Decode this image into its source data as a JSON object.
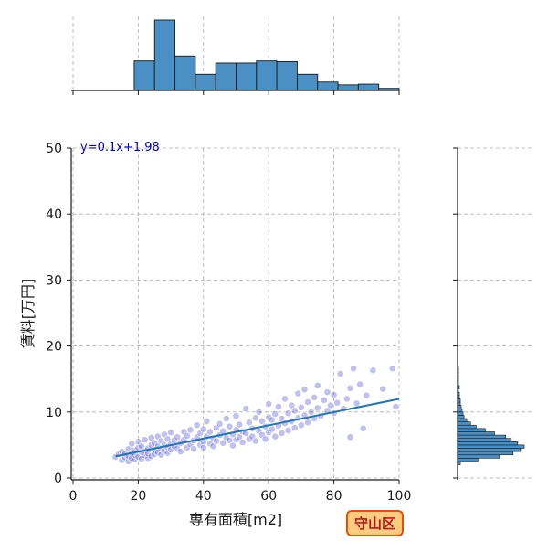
{
  "chart_data": {
    "type": "scatter",
    "title": "",
    "xlabel": "専有面積[m2]",
    "ylabel": "賃料[万円]",
    "xlim": [
      0,
      100
    ],
    "ylim": [
      0,
      50
    ],
    "xticks": [
      0,
      20,
      40,
      60,
      80,
      100
    ],
    "yticks": [
      0,
      10,
      20,
      30,
      40,
      50
    ],
    "grid": true,
    "regression": {
      "label": "y=0.1x+1.98",
      "slope": 0.1,
      "intercept": 1.98,
      "x_range": [
        13,
        100
      ]
    },
    "badge": {
      "text": "守山区",
      "fill": "#ffcc80",
      "border": "#e65100",
      "color": "#b71c1c"
    },
    "colors": {
      "points": "#3f3fd0",
      "line": "#1f77b4",
      "hist": "#4a90c4",
      "hist_edge": "#1a1a1a",
      "grid": "#b0b0b0",
      "label": "#0000cc"
    },
    "marginal_x": {
      "bin_edges": [
        0,
        6.25,
        12.5,
        18.75,
        25,
        31.25,
        37.5,
        43.75,
        50,
        56.25,
        62.5,
        68.75,
        75,
        81.25,
        87.5,
        93.75,
        100
      ],
      "counts": [
        0,
        0,
        0,
        42,
        100,
        49,
        23,
        39,
        39,
        42,
        41,
        23,
        12,
        8,
        9,
        3
      ]
    },
    "marginal_y": {
      "bin_edges": [
        2,
        2.5,
        3,
        3.5,
        4,
        4.5,
        5,
        5.5,
        6,
        6.5,
        7,
        7.5,
        8,
        8.5,
        9,
        9.5,
        10,
        10.5,
        11,
        11.5,
        12,
        12.5,
        13,
        13.5,
        14,
        14.5,
        15,
        15.5,
        16,
        16.5,
        17
      ],
      "counts": [
        3,
        22,
        45,
        60,
        68,
        72,
        65,
        58,
        52,
        40,
        30,
        20,
        14,
        10,
        7,
        6,
        5,
        4,
        3,
        3,
        2,
        2,
        1,
        2,
        1,
        1,
        1,
        1,
        1,
        1
      ]
    },
    "points": [
      [
        13,
        3.2
      ],
      [
        14,
        3.6
      ],
      [
        15,
        2.7
      ],
      [
        15,
        4.0
      ],
      [
        16,
        3.1
      ],
      [
        16,
        3.7
      ],
      [
        17,
        2.5
      ],
      [
        17,
        4.4
      ],
      [
        17,
        3.3
      ],
      [
        18,
        3.0
      ],
      [
        18,
        5.2
      ],
      [
        18,
        3.8
      ],
      [
        19,
        2.8
      ],
      [
        19,
        4.2
      ],
      [
        19,
        3.5
      ],
      [
        20,
        4.6
      ],
      [
        20,
        3.2
      ],
      [
        20,
        5.5
      ],
      [
        21,
        3.9
      ],
      [
        21,
        2.9
      ],
      [
        21,
        4.8
      ],
      [
        22,
        3.4
      ],
      [
        22,
        4.1
      ],
      [
        22,
        5.8
      ],
      [
        23,
        3.0
      ],
      [
        23,
        4.5
      ],
      [
        23,
        3.7
      ],
      [
        24,
        5.0
      ],
      [
        24,
        3.3
      ],
      [
        24,
        6.1
      ],
      [
        25,
        4.2
      ],
      [
        25,
        3.6
      ],
      [
        25,
        5.3
      ],
      [
        26,
        4.8
      ],
      [
        26,
        3.9
      ],
      [
        26,
        6.3
      ],
      [
        27,
        4.4
      ],
      [
        27,
        5.6
      ],
      [
        27,
        3.5
      ],
      [
        28,
        5.0
      ],
      [
        28,
        4.1
      ],
      [
        28,
        6.6
      ],
      [
        29,
        4.7
      ],
      [
        29,
        5.9
      ],
      [
        29,
        3.8
      ],
      [
        30,
        5.2
      ],
      [
        30,
        4.3
      ],
      [
        30,
        6.9
      ],
      [
        31,
        4.9
      ],
      [
        31,
        5.7
      ],
      [
        32,
        4.5
      ],
      [
        32,
        6.2
      ],
      [
        33,
        5.3
      ],
      [
        33,
        4.0
      ],
      [
        34,
        5.8
      ],
      [
        34,
        7.0
      ],
      [
        35,
        4.6
      ],
      [
        35,
        6.4
      ],
      [
        36,
        5.1
      ],
      [
        36,
        7.3
      ],
      [
        37,
        5.7
      ],
      [
        37,
        4.4
      ],
      [
        38,
        6.2
      ],
      [
        38,
        8.0
      ],
      [
        39,
        5.0
      ],
      [
        39,
        6.8
      ],
      [
        40,
        5.5
      ],
      [
        40,
        7.4
      ],
      [
        40,
        4.6
      ],
      [
        41,
        6.3
      ],
      [
        41,
        8.6
      ],
      [
        42,
        5.2
      ],
      [
        42,
        7.0
      ],
      [
        43,
        6.0
      ],
      [
        43,
        4.8
      ],
      [
        44,
        7.6
      ],
      [
        44,
        5.6
      ],
      [
        45,
        6.5
      ],
      [
        45,
        8.2
      ],
      [
        46,
        5.3
      ],
      [
        46,
        7.1
      ],
      [
        47,
        6.1
      ],
      [
        47,
        9.0
      ],
      [
        48,
        5.7
      ],
      [
        48,
        7.8
      ],
      [
        49,
        6.6
      ],
      [
        49,
        4.9
      ],
      [
        50,
        7.3
      ],
      [
        50,
        5.8
      ],
      [
        50,
        9.4
      ],
      [
        51,
        6.2
      ],
      [
        51,
        8.1
      ],
      [
        52,
        5.4
      ],
      [
        52,
        7.0
      ],
      [
        53,
        6.8
      ],
      [
        53,
        10.5
      ],
      [
        54,
        5.9
      ],
      [
        54,
        8.4
      ],
      [
        55,
        7.5
      ],
      [
        55,
        6.3
      ],
      [
        56,
        9.1
      ],
      [
        56,
        5.6
      ],
      [
        57,
        7.1
      ],
      [
        57,
        10.0
      ],
      [
        58,
        6.5
      ],
      [
        58,
        8.6
      ],
      [
        59,
        7.8
      ],
      [
        59,
        5.9
      ],
      [
        60,
        9.2
      ],
      [
        60,
        6.9
      ],
      [
        60,
        11.2
      ],
      [
        61,
        7.4
      ],
      [
        61,
        8.8
      ],
      [
        62,
        6.3
      ],
      [
        62,
        9.7
      ],
      [
        63,
        7.9
      ],
      [
        63,
        10.8
      ],
      [
        64,
        6.8
      ],
      [
        64,
        9.0
      ],
      [
        65,
        8.3
      ],
      [
        65,
        12.0
      ],
      [
        66,
        7.2
      ],
      [
        66,
        9.8
      ],
      [
        67,
        8.6
      ],
      [
        67,
        11.0
      ],
      [
        68,
        7.6
      ],
      [
        68,
        10.2
      ],
      [
        69,
        9.1
      ],
      [
        69,
        12.8
      ],
      [
        70,
        8.0
      ],
      [
        70,
        10.7
      ],
      [
        71,
        9.5
      ],
      [
        71,
        13.4
      ],
      [
        72,
        8.4
      ],
      [
        72,
        11.5
      ],
      [
        73,
        10.0
      ],
      [
        74,
        9.0
      ],
      [
        74,
        12.2
      ],
      [
        75,
        10.6
      ],
      [
        75,
        14.0
      ],
      [
        76,
        9.4
      ],
      [
        77,
        11.8
      ],
      [
        78,
        10.2
      ],
      [
        78,
        13.0
      ],
      [
        79,
        11.0
      ],
      [
        80,
        9.8
      ],
      [
        80,
        12.6
      ],
      [
        81,
        11.4
      ],
      [
        82,
        15.8
      ],
      [
        83,
        10.5
      ],
      [
        84,
        12.0
      ],
      [
        85,
        6.2
      ],
      [
        85,
        13.6
      ],
      [
        86,
        16.6
      ],
      [
        87,
        11.3
      ],
      [
        88,
        14.2
      ],
      [
        89,
        7.5
      ],
      [
        90,
        12.5
      ],
      [
        92,
        16.3
      ],
      [
        95,
        13.5
      ],
      [
        98,
        16.6
      ],
      [
        99,
        10.8
      ]
    ]
  }
}
